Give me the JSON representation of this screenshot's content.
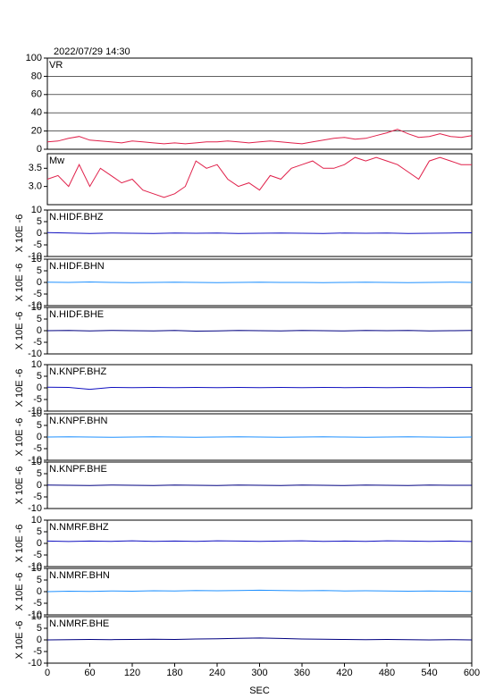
{
  "title": "2022/07/29 14:30",
  "chart_data": [
    {
      "type": "line",
      "label": "VR",
      "ylim": [
        0,
        100
      ],
      "yticks": [
        0,
        20,
        40,
        60,
        80,
        100
      ],
      "grid": true,
      "x": [
        0,
        15,
        30,
        45,
        60,
        75,
        90,
        105,
        120,
        135,
        150,
        165,
        180,
        195,
        210,
        225,
        240,
        255,
        270,
        285,
        300,
        315,
        330,
        345,
        360,
        375,
        390,
        405,
        420,
        435,
        450,
        465,
        480,
        495,
        510,
        525,
        540,
        555,
        570,
        585,
        600
      ],
      "series": [
        {
          "color": "#e0204a",
          "values": [
            8,
            9,
            12,
            14,
            10,
            9,
            8,
            7,
            9,
            8,
            7,
            6,
            7,
            6,
            7,
            8,
            8,
            9,
            8,
            7,
            8,
            9,
            8,
            7,
            6,
            8,
            10,
            12,
            13,
            11,
            12,
            15,
            18,
            22,
            17,
            13,
            14,
            17,
            14,
            13,
            15
          ]
        }
      ]
    },
    {
      "type": "line",
      "label": "Mw",
      "ylim": [
        2.5,
        3.9
      ],
      "yticks": [
        {
          "value": 3,
          "label": "3.0"
        },
        3.5
      ],
      "grid": false,
      "x": [
        0,
        15,
        30,
        45,
        60,
        75,
        90,
        105,
        120,
        135,
        150,
        165,
        180,
        195,
        210,
        225,
        240,
        255,
        270,
        285,
        300,
        315,
        330,
        345,
        360,
        375,
        390,
        405,
        420,
        435,
        450,
        465,
        480,
        495,
        510,
        525,
        540,
        555,
        570,
        585,
        600
      ],
      "series": [
        {
          "color": "#e0204a",
          "values": [
            3.2,
            3.3,
            3.0,
            3.6,
            3.0,
            3.5,
            3.3,
            3.1,
            3.2,
            2.9,
            2.8,
            2.7,
            2.8,
            3.0,
            3.7,
            3.5,
            3.6,
            3.2,
            3.0,
            3.1,
            2.9,
            3.3,
            3.2,
            3.5,
            3.6,
            3.7,
            3.5,
            3.5,
            3.6,
            3.8,
            3.7,
            3.8,
            3.7,
            3.6,
            3.4,
            3.2,
            3.7,
            3.8,
            3.7,
            3.6,
            3.6
          ]
        }
      ]
    },
    {
      "type": "line",
      "label": "N.HIDF.BHZ",
      "ylabel": "X 10E -6",
      "ylim": [
        -10,
        10
      ],
      "yticks": [
        -10,
        -5,
        0,
        5,
        10
      ],
      "x": [
        0,
        30,
        60,
        90,
        120,
        150,
        180,
        210,
        240,
        270,
        300,
        330,
        360,
        390,
        420,
        450,
        480,
        510,
        540,
        570,
        600
      ],
      "series": [
        {
          "color": "#1010c0",
          "values": [
            0.3,
            0.1,
            -0.1,
            0.1,
            0,
            -0.1,
            0.1,
            0,
            0.1,
            -0.1,
            0,
            0.1,
            0,
            -0.1,
            0.1,
            0,
            0.1,
            -0.1,
            0,
            0.1,
            0.2
          ]
        }
      ]
    },
    {
      "type": "line",
      "label": "N.HIDF.BHN",
      "ylabel": "X 10E -6",
      "ylim": [
        -10,
        10
      ],
      "yticks": [
        -10,
        -5,
        0,
        5,
        10
      ],
      "x": [
        0,
        30,
        60,
        90,
        120,
        150,
        180,
        210,
        240,
        270,
        300,
        330,
        360,
        390,
        420,
        450,
        480,
        510,
        540,
        570,
        600
      ],
      "series": [
        {
          "color": "#1e90ff",
          "values": [
            0.1,
            0,
            0.2,
            0,
            -0.1,
            0,
            0.1,
            0,
            -0.1,
            0,
            0.1,
            0,
            0,
            -0.1,
            0,
            0.1,
            0,
            -0.1,
            0,
            0.1,
            0
          ]
        }
      ]
    },
    {
      "type": "line",
      "label": "N.HIDF.BHE",
      "ylabel": "X 10E -6",
      "ylim": [
        -10,
        10
      ],
      "yticks": [
        -10,
        -5,
        0,
        5,
        10
      ],
      "x": [
        0,
        30,
        60,
        90,
        120,
        150,
        180,
        210,
        240,
        270,
        300,
        330,
        360,
        390,
        420,
        450,
        480,
        510,
        540,
        570,
        600
      ],
      "series": [
        {
          "color": "#000080",
          "values": [
            0,
            0.1,
            -0.1,
            0.1,
            0,
            -0.1,
            0.1,
            -0.2,
            -0.1,
            0.1,
            0,
            -0.1,
            0.1,
            0,
            -0.1,
            0.1,
            0,
            0.1,
            -0.1,
            0,
            0.1
          ]
        }
      ]
    },
    {
      "type": "line",
      "label": "N.KNPF.BHZ",
      "ylabel": "X 10E -6",
      "ylim": [
        -10,
        10
      ],
      "yticks": [
        -10,
        -5,
        0,
        5,
        10
      ],
      "x": [
        0,
        30,
        60,
        90,
        120,
        150,
        180,
        210,
        240,
        270,
        300,
        330,
        360,
        390,
        420,
        450,
        480,
        510,
        540,
        570,
        600
      ],
      "series": [
        {
          "color": "#1010c0",
          "values": [
            0.3,
            0.2,
            -0.6,
            0.2,
            0.1,
            0.2,
            0.1,
            0.2,
            0.1,
            0.2,
            0.1,
            0.2,
            0.1,
            0.2,
            0.1,
            0.2,
            0.1,
            0.2,
            0.1,
            0.2,
            0.2
          ]
        }
      ]
    },
    {
      "type": "line",
      "label": "N.KNPF.BHN",
      "ylabel": "X 10E -6",
      "ylim": [
        -10,
        10
      ],
      "yticks": [
        -10,
        -5,
        0,
        5,
        10
      ],
      "x": [
        0,
        30,
        60,
        90,
        120,
        150,
        180,
        210,
        240,
        270,
        300,
        330,
        360,
        390,
        420,
        450,
        480,
        510,
        540,
        570,
        600
      ],
      "series": [
        {
          "color": "#1e90ff",
          "values": [
            0,
            0.1,
            0,
            -0.1,
            0,
            0.1,
            0,
            -0.1,
            0,
            0.1,
            0,
            -0.1,
            0,
            0.1,
            0,
            -0.1,
            0,
            0.1,
            0,
            -0.1,
            0
          ]
        }
      ]
    },
    {
      "type": "line",
      "label": "N.KNPF.BHE",
      "ylabel": "X 10E -6",
      "ylim": [
        -10,
        10
      ],
      "yticks": [
        -10,
        -5,
        0,
        5,
        10
      ],
      "x": [
        0,
        30,
        60,
        90,
        120,
        150,
        180,
        210,
        240,
        270,
        300,
        330,
        360,
        390,
        420,
        450,
        480,
        510,
        540,
        570,
        600
      ],
      "series": [
        {
          "color": "#000080",
          "values": [
            0.1,
            0,
            -0.1,
            0.1,
            0,
            -0.1,
            0.1,
            0,
            -0.1,
            0.1,
            0,
            -0.1,
            0.1,
            0,
            -0.1,
            0.1,
            0,
            -0.1,
            0.1,
            0,
            0
          ]
        }
      ]
    },
    {
      "type": "line",
      "label": "N.NMRF.BHZ",
      "ylabel": "X 10E -6",
      "ylim": [
        -10,
        10
      ],
      "yticks": [
        -10,
        -5,
        0,
        5,
        10
      ],
      "x": [
        0,
        30,
        60,
        90,
        120,
        150,
        180,
        210,
        240,
        270,
        300,
        330,
        360,
        390,
        420,
        450,
        480,
        510,
        540,
        570,
        600
      ],
      "series": [
        {
          "color": "#1010c0",
          "values": [
            1,
            0.8,
            1,
            0.9,
            1.1,
            0.9,
            1,
            0.9,
            1.1,
            1,
            0.9,
            1,
            1.1,
            0.9,
            1,
            0.9,
            1.1,
            1,
            0.9,
            1,
            0.8
          ]
        }
      ]
    },
    {
      "type": "line",
      "label": "N.NMRF.BHN",
      "ylabel": "X 10E -6",
      "ylim": [
        -10,
        10
      ],
      "yticks": [
        -10,
        -5,
        0,
        5,
        10
      ],
      "x": [
        0,
        30,
        60,
        90,
        120,
        150,
        180,
        210,
        240,
        270,
        300,
        330,
        360,
        390,
        420,
        450,
        480,
        510,
        540,
        570,
        600
      ],
      "series": [
        {
          "color": "#1e90ff",
          "values": [
            0,
            0.2,
            0.1,
            0.3,
            0.2,
            0.4,
            0.3,
            0.5,
            0.4,
            0.5,
            0.6,
            0.5,
            0.4,
            0.5,
            0.3,
            0.4,
            0.3,
            0.2,
            0.3,
            0.2,
            0.1
          ]
        }
      ]
    },
    {
      "type": "line",
      "label": "N.NMRF.BHE",
      "ylabel": "X 10E -6",
      "ylim": [
        -10,
        10
      ],
      "yticks": [
        -10,
        -5,
        0,
        5,
        10
      ],
      "x": [
        0,
        30,
        60,
        90,
        120,
        150,
        180,
        210,
        240,
        270,
        300,
        330,
        360,
        390,
        420,
        450,
        480,
        510,
        540,
        570,
        600
      ],
      "series": [
        {
          "color": "#000080",
          "values": [
            0,
            0.1,
            0.2,
            0.1,
            0.2,
            0.3,
            0.2,
            0.4,
            0.5,
            0.7,
            0.8,
            0.6,
            0.4,
            0.3,
            0.2,
            0.1,
            0.2,
            0.1,
            0,
            0.1,
            0
          ]
        }
      ]
    },
    {
      "type": "axis",
      "xlabel": "SEC",
      "xlim": [
        0,
        600
      ],
      "xticks": [
        0,
        60,
        120,
        180,
        240,
        300,
        360,
        420,
        480,
        540,
        600
      ]
    }
  ]
}
